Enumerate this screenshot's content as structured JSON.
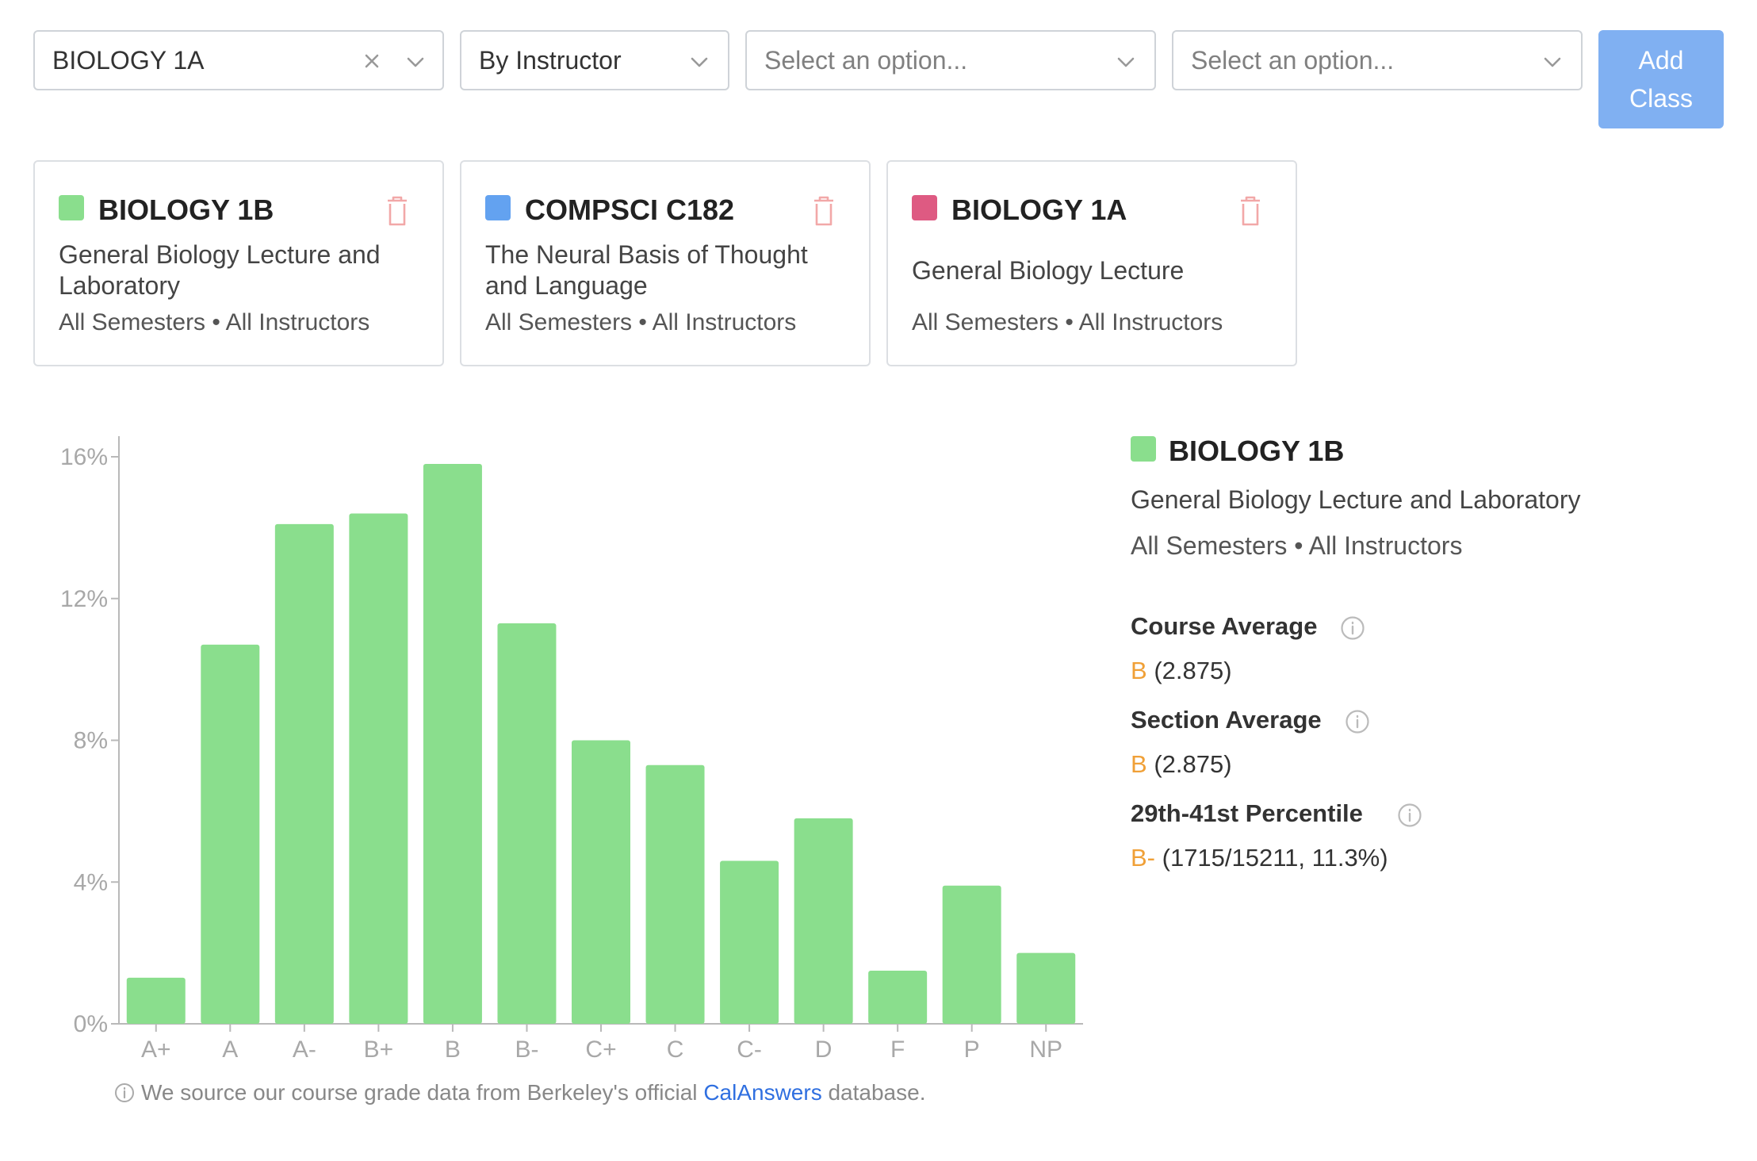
{
  "filters": {
    "course": {
      "value": "BIOLOGY 1A"
    },
    "mode": {
      "value": "By Instructor"
    },
    "option1": {
      "placeholder": "Select an option..."
    },
    "option2": {
      "placeholder": "Select an option..."
    },
    "add_button": {
      "line1": "Add",
      "line2": "Class"
    }
  },
  "cards": [
    {
      "code": "BIOLOGY 1B",
      "title": "General Biology Lecture and Laboratory",
      "meta": "All Semesters • All Instructors",
      "color": "#8ade8d"
    },
    {
      "code": "COMPSCI C182",
      "title": "The Neural Basis of Thought and Language",
      "meta": "All Semesters • All Instructors",
      "color": "#63a2f0"
    },
    {
      "code": "BIOLOGY 1A",
      "title": "General Biology Lecture",
      "meta": "All Semesters • All Instructors",
      "color": "#de5a82"
    }
  ],
  "info": {
    "code": "BIOLOGY 1B",
    "title": "General Biology Lecture and Laboratory",
    "meta": "All Semesters • All Instructors",
    "color": "#8ade8d",
    "course_avg_label": "Course Average",
    "course_avg_grade": "B",
    "course_avg_value": "(2.875)",
    "section_avg_label": "Section Average",
    "section_avg_grade": "B",
    "section_avg_value": "(2.875)",
    "percentile_label": "29th-41st Percentile",
    "percentile_grade": "B-",
    "percentile_value": "(1715/15211, 11.3%)"
  },
  "footnote": {
    "before": "We source our course grade data from Berkeley's official",
    "link": "CalAnswers",
    "after": "database."
  },
  "chart_data": {
    "type": "bar",
    "categories": [
      "A+",
      "A",
      "A-",
      "B+",
      "B",
      "B-",
      "C+",
      "C",
      "C-",
      "D",
      "F",
      "P",
      "NP"
    ],
    "series": [
      {
        "name": "BIOLOGY 1B",
        "values": [
          1.3,
          10.7,
          14.1,
          14.4,
          15.8,
          11.3,
          8.0,
          7.3,
          4.6,
          5.8,
          1.5,
          3.9,
          2.0
        ],
        "color": "#8ade8d"
      }
    ],
    "yticks": [
      "0%",
      "4%",
      "8%",
      "12%",
      "16%"
    ],
    "ylim": [
      0,
      16
    ],
    "xlabel": "",
    "ylabel": "",
    "grid": false
  }
}
